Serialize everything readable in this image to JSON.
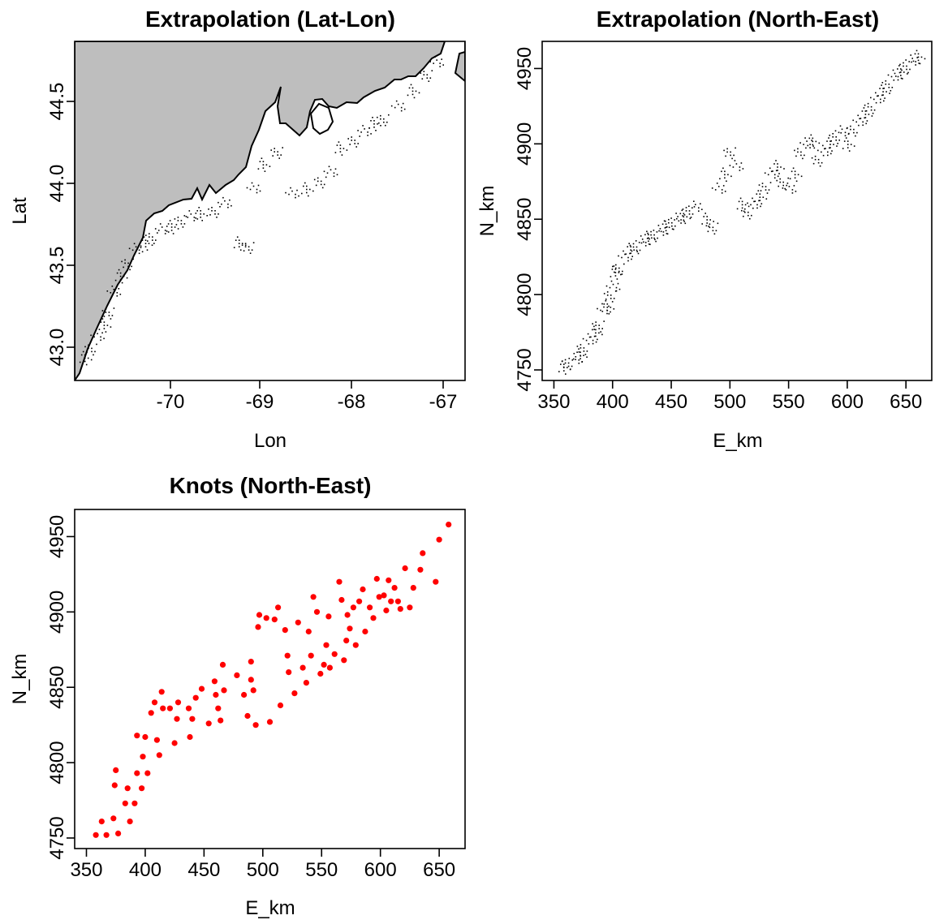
{
  "chart_data": [
    {
      "type": "scatter",
      "title": "Extrapolation (Lat-Lon)",
      "xlabel": "Lon",
      "ylabel": "Lat",
      "xlim": [
        -70.85,
        -66.8
      ],
      "ylim": [
        42.78,
        44.85
      ],
      "x_ticks": [
        "-70",
        "-69",
        "-68",
        "-67"
      ],
      "y_ticks": [
        "43.0",
        "43.5",
        "44.0",
        "44.5"
      ],
      "land_color": "#bebebe",
      "point_color": "#000000",
      "grid": false,
      "points": [
        [
          -70.75,
          42.92
        ],
        [
          -70.68,
          42.98
        ],
        [
          -70.62,
          43.05
        ],
        [
          -70.55,
          43.12
        ],
        [
          -70.5,
          43.2
        ],
        [
          -70.45,
          43.32
        ],
        [
          -70.38,
          43.42
        ],
        [
          -70.3,
          43.5
        ],
        [
          -70.22,
          43.58
        ],
        [
          -70.12,
          43.62
        ],
        [
          -70.05,
          43.66
        ],
        [
          -69.95,
          43.7
        ],
        [
          -69.85,
          43.72
        ],
        [
          -69.75,
          43.76
        ],
        [
          -69.65,
          43.78
        ],
        [
          -69.55,
          43.8
        ],
        [
          -69.4,
          43.82
        ],
        [
          -69.3,
          43.86
        ],
        [
          -69.15,
          43.62
        ],
        [
          -69.05,
          43.6
        ],
        [
          -69.0,
          43.95
        ],
        [
          -68.9,
          44.1
        ],
        [
          -68.75,
          44.18
        ],
        [
          -68.6,
          43.92
        ],
        [
          -68.45,
          43.95
        ],
        [
          -68.3,
          44.0
        ],
        [
          -68.2,
          44.05
        ],
        [
          -68.1,
          44.2
        ],
        [
          -67.95,
          44.25
        ],
        [
          -67.85,
          44.3
        ],
        [
          -67.75,
          44.35
        ],
        [
          -67.65,
          44.38
        ],
        [
          -67.5,
          44.45
        ],
        [
          -67.35,
          44.55
        ],
        [
          -67.2,
          44.65
        ],
        [
          -67.1,
          44.72
        ]
      ]
    },
    {
      "type": "scatter",
      "title": "Extrapolation (North-East)",
      "xlabel": "E_km",
      "ylabel": "N_km",
      "xlim": [
        340,
        672
      ],
      "ylim": [
        4743,
        4968
      ],
      "x_ticks": [
        "350",
        "400",
        "450",
        "500",
        "550",
        "600",
        "650"
      ],
      "y_ticks": [
        "4750",
        "4800",
        "4850",
        "4900",
        "4950"
      ],
      "point_color": "#000000",
      "grid": false,
      "points": [
        [
          358,
          4752
        ],
        [
          362,
          4755
        ],
        [
          368,
          4757
        ],
        [
          372,
          4760
        ],
        [
          375,
          4765
        ],
        [
          380,
          4770
        ],
        [
          385,
          4775
        ],
        [
          388,
          4780
        ],
        [
          392,
          4790
        ],
        [
          395,
          4792
        ],
        [
          398,
          4800
        ],
        [
          400,
          4805
        ],
        [
          402,
          4815
        ],
        [
          405,
          4818
        ],
        [
          410,
          4825
        ],
        [
          415,
          4830
        ],
        [
          420,
          4832
        ],
        [
          425,
          4835
        ],
        [
          430,
          4838
        ],
        [
          435,
          4840
        ],
        [
          440,
          4842
        ],
        [
          445,
          4845
        ],
        [
          450,
          4848
        ],
        [
          455,
          4850
        ],
        [
          460,
          4852
        ],
        [
          465,
          4856
        ],
        [
          470,
          4858
        ],
        [
          480,
          4850
        ],
        [
          485,
          4845
        ],
        [
          490,
          4870
        ],
        [
          495,
          4880
        ],
        [
          500,
          4895
        ],
        [
          505,
          4885
        ],
        [
          510,
          4860
        ],
        [
          515,
          4855
        ],
        [
          520,
          4860
        ],
        [
          525,
          4865
        ],
        [
          530,
          4872
        ],
        [
          535,
          4880
        ],
        [
          540,
          4885
        ],
        [
          545,
          4875
        ],
        [
          550,
          4870
        ],
        [
          555,
          4880
        ],
        [
          560,
          4895
        ],
        [
          565,
          4900
        ],
        [
          570,
          4902
        ],
        [
          575,
          4890
        ],
        [
          580,
          4895
        ],
        [
          585,
          4900
        ],
        [
          590,
          4905
        ],
        [
          595,
          4908
        ],
        [
          600,
          4900
        ],
        [
          605,
          4910
        ],
        [
          610,
          4915
        ],
        [
          615,
          4920
        ],
        [
          620,
          4925
        ],
        [
          625,
          4930
        ],
        [
          630,
          4935
        ],
        [
          635,
          4940
        ],
        [
          640,
          4945
        ],
        [
          645,
          4948
        ],
        [
          650,
          4952
        ],
        [
          655,
          4955
        ],
        [
          660,
          4958
        ]
      ]
    },
    {
      "type": "scatter",
      "title": "Knots (North-East)",
      "xlabel": "E_km",
      "ylabel": "N_km",
      "xlim": [
        340,
        672
      ],
      "ylim": [
        4743,
        4968
      ],
      "x_ticks": [
        "350",
        "400",
        "450",
        "500",
        "550",
        "600",
        "650"
      ],
      "y_ticks": [
        "4750",
        "4800",
        "4850",
        "4900",
        "4950"
      ],
      "point_color": "#ff0000",
      "grid": false,
      "points": [
        [
          358,
          4752
        ],
        [
          363,
          4761
        ],
        [
          367,
          4752
        ],
        [
          373,
          4763
        ],
        [
          374,
          4785
        ],
        [
          375,
          4795
        ],
        [
          377,
          4753
        ],
        [
          383,
          4773
        ],
        [
          385,
          4783
        ],
        [
          387,
          4761
        ],
        [
          391,
          4773
        ],
        [
          393,
          4793
        ],
        [
          393,
          4818
        ],
        [
          397,
          4783
        ],
        [
          398,
          4804
        ],
        [
          400,
          4817
        ],
        [
          402,
          4793
        ],
        [
          405,
          4833
        ],
        [
          408,
          4840
        ],
        [
          410,
          4815
        ],
        [
          412,
          4805
        ],
        [
          414,
          4847
        ],
        [
          415,
          4836
        ],
        [
          421,
          4836
        ],
        [
          425,
          4813
        ],
        [
          427,
          4829
        ],
        [
          428,
          4840
        ],
        [
          437,
          4836
        ],
        [
          438,
          4817
        ],
        [
          440,
          4829
        ],
        [
          443,
          4843
        ],
        [
          448,
          4849
        ],
        [
          454,
          4826
        ],
        [
          459,
          4854
        ],
        [
          460,
          4845
        ],
        [
          462,
          4836
        ],
        [
          464,
          4828
        ],
        [
          466,
          4865
        ],
        [
          467,
          4848
        ],
        [
          478,
          4858
        ],
        [
          484,
          4845
        ],
        [
          487,
          4831
        ],
        [
          490,
          4867
        ],
        [
          490,
          4855
        ],
        [
          492,
          4848
        ],
        [
          494,
          4825
        ],
        [
          496,
          4890
        ],
        [
          497,
          4898
        ],
        [
          503,
          4896
        ],
        [
          506,
          4827
        ],
        [
          510,
          4895
        ],
        [
          513,
          4903
        ],
        [
          515,
          4838
        ],
        [
          519,
          4888
        ],
        [
          521,
          4871
        ],
        [
          522,
          4860
        ],
        [
          527,
          4846
        ],
        [
          530,
          4893
        ],
        [
          534,
          4863
        ],
        [
          537,
          4853
        ],
        [
          539,
          4887
        ],
        [
          541,
          4871
        ],
        [
          543,
          4910
        ],
        [
          546,
          4900
        ],
        [
          549,
          4859
        ],
        [
          552,
          4865
        ],
        [
          554,
          4878
        ],
        [
          556,
          4897
        ],
        [
          557,
          4863
        ],
        [
          561,
          4872
        ],
        [
          565,
          4920
        ],
        [
          567,
          4908
        ],
        [
          569,
          4868
        ],
        [
          571,
          4881
        ],
        [
          572,
          4898
        ],
        [
          574,
          4889
        ],
        [
          577,
          4903
        ],
        [
          579,
          4878
        ],
        [
          582,
          4907
        ],
        [
          585,
          4915
        ],
        [
          587,
          4887
        ],
        [
          591,
          4903
        ],
        [
          594,
          4896
        ],
        [
          597,
          4922
        ],
        [
          599,
          4910
        ],
        [
          603,
          4911
        ],
        [
          605,
          4901
        ],
        [
          607,
          4921
        ],
        [
          609,
          4907
        ],
        [
          612,
          4916
        ],
        [
          615,
          4907
        ],
        [
          617,
          4902
        ],
        [
          621,
          4929
        ],
        [
          625,
          4903
        ],
        [
          628,
          4916
        ],
        [
          634,
          4928
        ],
        [
          636,
          4939
        ],
        [
          647,
          4920
        ],
        [
          650,
          4948
        ],
        [
          658,
          4958
        ]
      ]
    }
  ]
}
